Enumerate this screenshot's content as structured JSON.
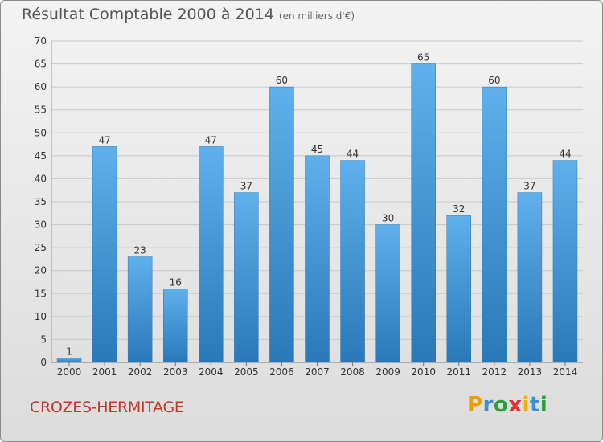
{
  "chart_data": {
    "type": "bar",
    "title": "Résultat Comptable 2000 à 2014",
    "unit_label": "(en milliers d'€)",
    "categories": [
      "2000",
      "2001",
      "2002",
      "2003",
      "2004",
      "2005",
      "2006",
      "2007",
      "2008",
      "2009",
      "2010",
      "2011",
      "2012",
      "2013",
      "2014"
    ],
    "values": [
      1,
      47,
      23,
      16,
      47,
      37,
      60,
      45,
      44,
      30,
      65,
      32,
      60,
      37,
      44
    ],
    "ylim": [
      0,
      70
    ],
    "yticks": [
      0,
      5,
      10,
      15,
      20,
      25,
      30,
      35,
      40,
      45,
      50,
      55,
      60,
      65,
      70
    ],
    "grid": true,
    "xlabel": "",
    "ylabel": ""
  },
  "footer": {
    "commune": "CROZES-HERMITAGE",
    "logo_letters": [
      "P",
      "r",
      "o",
      "x",
      "i",
      "t",
      "i"
    ],
    "logo_colors": [
      "#e8a000",
      "#3c8fd0",
      "#2aa13c",
      "#e03030",
      "#f0b000",
      "#3c8fd0",
      "#2aa13c"
    ]
  },
  "colors": {
    "bar_top": "#5fb0ec",
    "bar_bottom": "#2a78b8",
    "grid": "#c8c8c8",
    "axis_text": "#333333"
  }
}
